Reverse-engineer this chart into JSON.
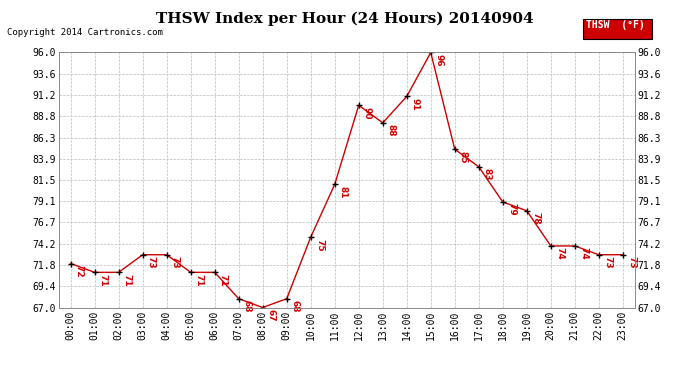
{
  "title": "THSW Index per Hour (24 Hours) 20140904",
  "copyright": "Copyright 2014 Cartronics.com",
  "legend_label": "THSW  (°F)",
  "hours": [
    0,
    1,
    2,
    3,
    4,
    5,
    6,
    7,
    8,
    9,
    10,
    11,
    12,
    13,
    14,
    15,
    16,
    17,
    18,
    19,
    20,
    21,
    22,
    23
  ],
  "values": [
    72,
    71,
    71,
    73,
    73,
    71,
    71,
    68,
    67,
    68,
    75,
    81,
    90,
    88,
    91,
    96,
    85,
    83,
    79,
    78,
    74,
    74,
    73,
    73
  ],
  "ylim": [
    67.0,
    96.0
  ],
  "yticks": [
    67.0,
    69.4,
    71.8,
    74.2,
    76.7,
    79.1,
    81.5,
    83.9,
    86.3,
    88.8,
    91.2,
    93.6,
    96.0
  ],
  "line_color": "#cc0000",
  "marker_color": "#000000",
  "grid_color": "#bbbbbb",
  "bg_color": "#ffffff",
  "title_fontsize": 11,
  "tick_fontsize": 7,
  "copyright_fontsize": 6.5,
  "value_fontsize": 6.5,
  "legend_bg": "#cc0000",
  "legend_text_color": "#ffffff"
}
